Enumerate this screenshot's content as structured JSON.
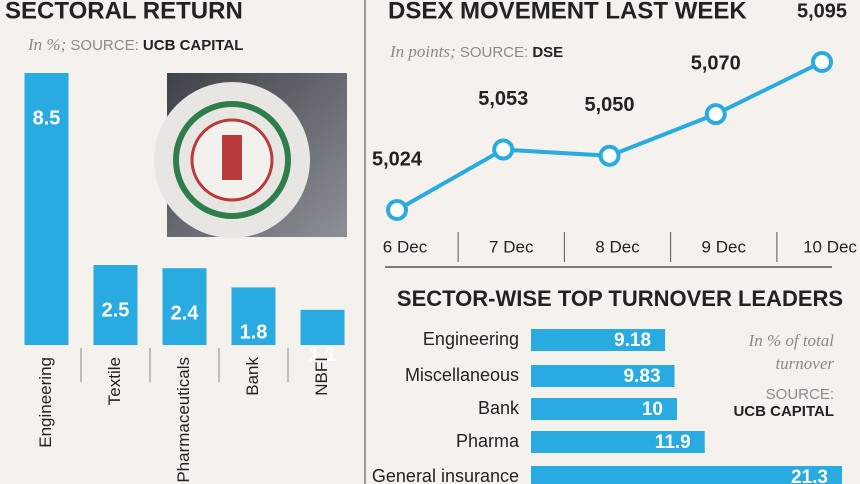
{
  "chart_data": [
    {
      "type": "bar",
      "title": "SECTORAL RETURN",
      "unit_note": "In %;",
      "source_label": "SOURCE:",
      "source": "UCB CAPITAL",
      "categories": [
        "Engineering",
        "Textile",
        "Pharmaceuticals",
        "Bank",
        "NBFI"
      ],
      "values": [
        8.5,
        2.5,
        2.4,
        1.8,
        1.1
      ],
      "color": "#29abe2"
    },
    {
      "type": "line",
      "title": "DSEX MOVEMENT LAST WEEK",
      "unit_note": "In points;",
      "source_label": "SOURCE:",
      "source": "DSE",
      "categories": [
        "6 Dec",
        "7 Dec",
        "8 Dec",
        "9 Dec",
        "10 Dec"
      ],
      "values": [
        5024,
        5053,
        5050,
        5070,
        5095
      ],
      "value_labels": [
        "5,024",
        "5,053",
        "5,050",
        "5,070",
        "5,095"
      ],
      "color": "#29abe2"
    },
    {
      "type": "hbar",
      "title": "SECTOR-WISE TOP TURNOVER LEADERS",
      "unit_note": "In % of total turnover",
      "source_label": "SOURCE:",
      "source": "UCB CAPITAL",
      "categories": [
        "Engineering",
        "Miscellaneous",
        "Bank",
        "Pharma",
        "General insurance"
      ],
      "values": [
        9.18,
        9.83,
        10,
        11.9,
        21.3
      ],
      "color": "#29abe2"
    }
  ]
}
